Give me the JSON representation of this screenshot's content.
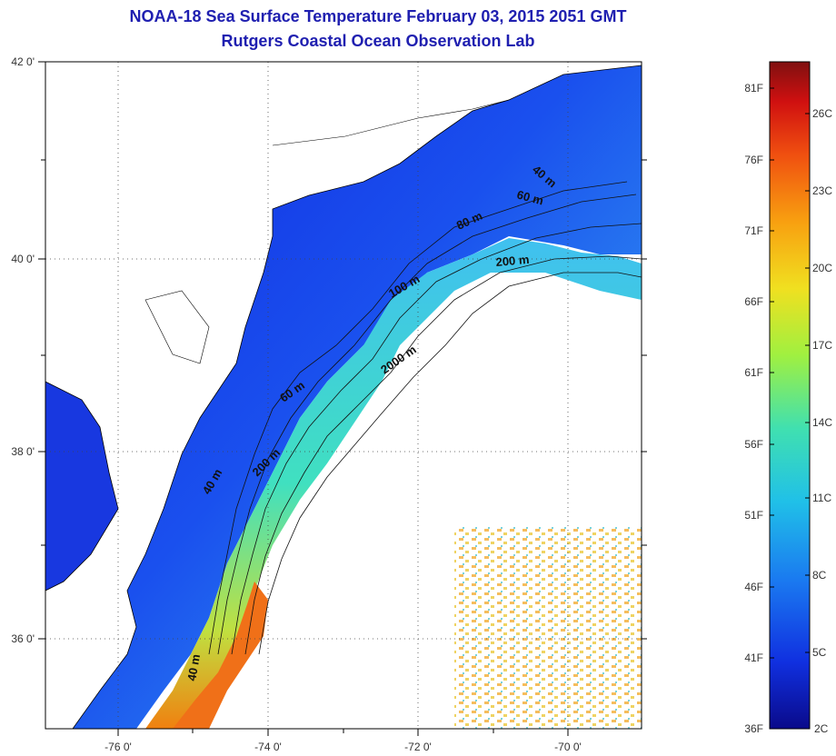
{
  "title": {
    "line1": "NOAA-18 Sea Surface Temperature February 03, 2015 2051 GMT",
    "line2": "Rutgers Coastal Ocean Observation Lab"
  },
  "axes": {
    "lat_labels": [
      "42 0'",
      "40 0'",
      "38 0'",
      "36 0'"
    ],
    "lon_labels": [
      "-76 0'",
      "-74 0'",
      "-72 0'",
      "-70 0'"
    ]
  },
  "contour_labels": [
    "40 m",
    "60 m",
    "80 m",
    "200 m",
    "40 m",
    "60 m",
    "200 m",
    "2000 m",
    "100 m",
    "40 m"
  ],
  "colorbar": {
    "fahrenheit": [
      "81F",
      "76F",
      "71F",
      "66F",
      "61F",
      "56F",
      "51F",
      "46F",
      "41F",
      "36F"
    ],
    "celsius": [
      "26C",
      "23C",
      "20C",
      "17C",
      "14C",
      "11C",
      "8C",
      "5C",
      "2C"
    ],
    "colors": [
      "#0a0a8a",
      "#1030e0",
      "#1a78f0",
      "#20c0e8",
      "#40e0b0",
      "#a0f040",
      "#f0e020",
      "#f8a010",
      "#f05010",
      "#d01010",
      "#801010"
    ]
  },
  "colors": {
    "ocean_nearshore": "#1838e0",
    "ocean_shelf": "#3a90f0",
    "slope_warm": "#40d8d0",
    "gulf_stream": "#f08010",
    "land": "#ffffff",
    "coastline": "#000000"
  }
}
